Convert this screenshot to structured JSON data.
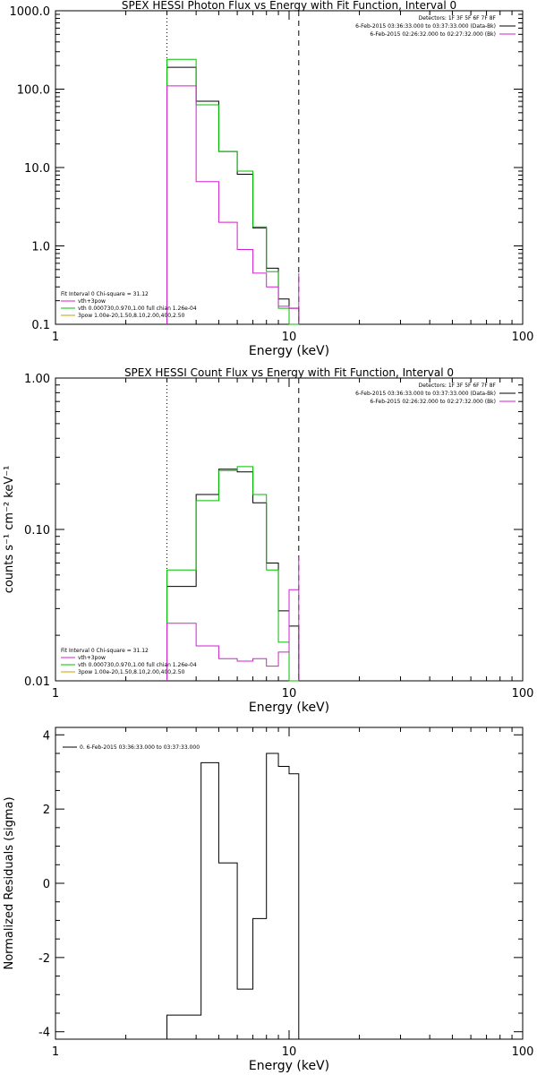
{
  "chart_data": [
    {
      "type": "line",
      "title": "SPEX HESSI Photon Flux vs Energy with Fit Function, Interval 0",
      "xlabel": "Energy (keV)",
      "ylabel": "",
      "xscale": "log",
      "yscale": "log",
      "xlim": [
        1,
        100
      ],
      "ylim": [
        0.1,
        1000
      ],
      "xticks": [
        "1",
        "10",
        "100"
      ],
      "yticks": [
        "0.1",
        "1.0",
        "10.0",
        "100.0",
        "1000.0"
      ],
      "vlines": [
        {
          "x": 3,
          "style": "dotted"
        },
        {
          "x": 11,
          "style": "dashed"
        }
      ],
      "legend_top_right": [
        {
          "label": "Detectors: 1F 3F 5F 6F 7F 8F",
          "color": "none"
        },
        {
          "label": "6-Feb-2015 03:36:33.000 to 03:37:33.000 (Data-Bk)",
          "color": "#000000"
        },
        {
          "label": "6-Feb-2015 02:26:32.000 to 02:27:32.000 (Bk)",
          "color": "#d020d0"
        }
      ],
      "legend_bottom_left": [
        {
          "label": "Fit Interval 0   Chi-square = 31.12",
          "color": "none"
        },
        {
          "label": "vth+3pow",
          "color": "#d020d0"
        },
        {
          "label": "vth 0.000730,0.970,1.00  full chian 1.26e-04",
          "color": "#00c000"
        },
        {
          "label": "3pow 1.00e-20,1.50,8.10,2.00,400,2.50",
          "color": "#c8a000"
        }
      ],
      "edges": [
        3,
        4,
        5,
        6,
        7,
        8,
        9,
        10,
        11
      ],
      "series": [
        {
          "color": "#000000",
          "values": [
            190,
            70,
            16,
            8.2,
            1.7,
            0.52,
            0.21,
            0.16
          ]
        },
        {
          "color": "#00c000",
          "values": [
            240,
            63,
            16,
            9,
            1.75,
            0.47,
            0.16,
            0.08
          ]
        },
        {
          "color": "#d020d0",
          "values": [
            110,
            6.6,
            2,
            0.9,
            0.45,
            0.3,
            0.17,
            0.16,
            0.45
          ],
          "edges_override": [
            3,
            4,
            5,
            6,
            7,
            8,
            9,
            10,
            11
          ]
        }
      ]
    },
    {
      "type": "line",
      "title": "SPEX HESSI Count Flux vs Energy with Fit Function, Interval 0",
      "xlabel": "Energy (keV)",
      "ylabel": "counts s⁻¹ cm⁻² keV⁻¹",
      "xscale": "log",
      "yscale": "log",
      "xlim": [
        1,
        100
      ],
      "ylim": [
        0.01,
        1
      ],
      "xticks": [
        "1",
        "10",
        "100"
      ],
      "yticks": [
        "0.01",
        "0.10",
        "1.00"
      ],
      "vlines": [
        {
          "x": 3,
          "style": "dotted"
        },
        {
          "x": 11,
          "style": "dashed"
        }
      ],
      "legend_top_right": [
        {
          "label": "Detectors: 1F 3F 5F 6F 7F 8F",
          "color": "none"
        },
        {
          "label": "6-Feb-2015 03:36:33.000 to 03:37:33.000 (Data-Bk)",
          "color": "#000000"
        },
        {
          "label": "6-Feb-2015 02:26:32.000 to 02:27:32.000 (Bk)",
          "color": "#d020d0"
        }
      ],
      "legend_bottom_left": [
        {
          "label": "Fit Interval 0   Chi-square = 31.12",
          "color": "none"
        },
        {
          "label": "vth+3pow",
          "color": "#d020d0"
        },
        {
          "label": "vth 0.000730,0.970,1.00  full chian 1.26e-04",
          "color": "#00c000"
        },
        {
          "label": "3pow 1.00e-20,1.50,8.10,2.00,400,2.50",
          "color": "#c8a000"
        }
      ],
      "edges": [
        3,
        4,
        5,
        6,
        7,
        8,
        9,
        10,
        11
      ],
      "series": [
        {
          "color": "#000000",
          "values": [
            0.042,
            0.17,
            0.25,
            0.24,
            0.15,
            0.06,
            0.029,
            0.023
          ]
        },
        {
          "color": "#00c000",
          "values": [
            0.054,
            0.155,
            0.245,
            0.26,
            0.17,
            0.054,
            0.018,
            0.01
          ]
        },
        {
          "color": "#d020d0",
          "values": [
            0.024,
            0.017,
            0.014,
            0.0135,
            0.014,
            0.0125,
            0.0155,
            0.04,
            0.066
          ]
        }
      ]
    },
    {
      "type": "line",
      "title": "",
      "xlabel": "Energy (keV)",
      "ylabel": "Normalized Residuals (sigma)",
      "xscale": "log",
      "yscale": "linear",
      "xlim": [
        1,
        100
      ],
      "ylim": [
        -4.2,
        4.2
      ],
      "xticks": [
        "1",
        "10",
        "100"
      ],
      "yticks": [
        "-4",
        "-2",
        "0",
        "2",
        "4"
      ],
      "legend_top_left": [
        {
          "label": "0. 6-Feb-2015 03:36:33.000 to 03:37:33.000",
          "color": "#000000"
        }
      ],
      "edges": [
        3,
        4.2,
        5,
        6,
        7,
        8,
        9,
        10,
        11
      ],
      "series": [
        {
          "color": "#000000",
          "values": [
            -3.55,
            3.25,
            0.55,
            -2.85,
            -0.95,
            3.5,
            3.15,
            2.95
          ]
        }
      ]
    }
  ]
}
